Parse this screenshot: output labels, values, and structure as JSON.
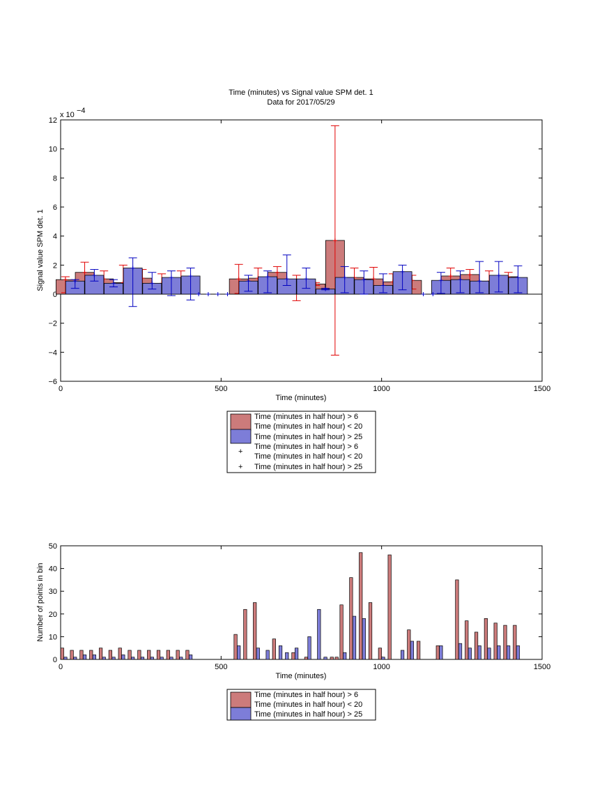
{
  "chart_data": [
    {
      "type": "bar",
      "title": "Time (minutes) vs Signal value SPM det. 1",
      "subtitle": "Data for 2017/05/29",
      "xlabel": "Time (minutes)",
      "ylabel": "Signal value SPM det. 1",
      "y_exponent": "x 10",
      "y_exponent_power": "−4",
      "xlim": [
        0,
        1500
      ],
      "ylim": [
        -6,
        12
      ],
      "x_ticks": [
        "0",
        "500",
        "1000",
        "1500"
      ],
      "y_ticks": [
        "−6",
        "−4",
        "−2",
        "0",
        "2",
        "4",
        "6",
        "8",
        "10",
        "12"
      ],
      "grid": false,
      "legend_position": "below",
      "legend": [
        {
          "label": "Time (minutes in half hour) > 6",
          "label2": "Time (minutes in half hour) < 20",
          "kind": "bar",
          "color": "#cc7b7b"
        },
        {
          "label": "Time (minutes in half hour) > 25",
          "kind": "bar",
          "color": "#7d7dd8"
        },
        {
          "label": "Time (minutes in half hour) > 6",
          "label2": "Time (minutes in half hour) < 20",
          "kind": "marker",
          "color": "#e00000"
        },
        {
          "label": "Time (minutes in half hour) > 25",
          "kind": "marker",
          "color": "#0000c0"
        }
      ],
      "series": [
        {
          "color": "#cc7b7b",
          "error_color": "#e00000",
          "x": [
            15,
            75,
            135,
            195,
            255,
            315,
            375,
            435,
            495,
            555,
            615,
            675,
            735,
            795,
            855,
            915,
            975,
            1035,
            1095,
            1155,
            1215,
            1275,
            1335,
            1395
          ],
          "values": [
            1.0,
            1.5,
            1.05,
            0.8,
            1.1,
            0.75,
            1.05,
            0,
            0,
            1.05,
            1.1,
            1.5,
            0.9,
            0.7,
            3.7,
            1.15,
            1.05,
            0.85,
            0.95,
            0,
            1.25,
            1.35,
            0.9,
            1.2
          ],
          "error_low": [
            0.1,
            0.7,
            0.3,
            0.3,
            0.5,
            0.15,
            0.3,
            0,
            0,
            0.05,
            0.4,
            0.9,
            -0.45,
            0.6,
            -4.2,
            0.1,
            0.25,
            0.0,
            0.35,
            0,
            0.7,
            0.1,
            0.0,
            0.5
          ],
          "error_high": [
            1.2,
            2.2,
            1.6,
            2.0,
            1.7,
            1.4,
            1.6,
            0,
            0,
            2.05,
            1.8,
            1.9,
            1.3,
            0.8,
            11.6,
            1.8,
            1.85,
            1.4,
            1.3,
            0,
            1.8,
            1.7,
            1.6,
            1.5
          ]
        },
        {
          "color": "#7d7dd8",
          "error_color": "#0000c0",
          "x": [
            45,
            105,
            165,
            225,
            285,
            345,
            405,
            465,
            525,
            585,
            645,
            705,
            765,
            825,
            885,
            945,
            1005,
            1065,
            1125,
            1185,
            1245,
            1305,
            1365,
            1425
          ],
          "values": [
            0.9,
            1.3,
            0.75,
            1.8,
            0.75,
            1.15,
            1.25,
            0,
            0,
            0.9,
            1.2,
            1.05,
            1.05,
            0.35,
            1.15,
            1.0,
            0.6,
            1.55,
            0,
            0.95,
            1.0,
            0.9,
            1.3,
            1.15
          ],
          "error_low": [
            0.4,
            0.9,
            0.5,
            -0.85,
            0.35,
            -0.1,
            -0.4,
            0,
            0,
            0.2,
            0.1,
            0.6,
            0.4,
            0.3,
            0.1,
            0.0,
            0.1,
            0.3,
            0,
            0.05,
            0.1,
            0.1,
            0.15,
            0.1
          ],
          "error_high": [
            1.0,
            1.7,
            1.0,
            2.5,
            1.5,
            1.6,
            1.8,
            0,
            0,
            1.3,
            1.6,
            2.7,
            1.8,
            0.4,
            1.9,
            1.6,
            1.4,
            2.0,
            0,
            1.5,
            1.6,
            2.25,
            2.25,
            1.95
          ]
        }
      ],
      "zero_markers_x": [
        430,
        460,
        490,
        520,
        1130,
        1160
      ]
    },
    {
      "type": "bar",
      "xlabel": "Time (minutes)",
      "ylabel": "Number of points in bin",
      "xlim": [
        0,
        1500
      ],
      "ylim": [
        0,
        50
      ],
      "x_ticks": [
        "0",
        "500",
        "1000",
        "1500"
      ],
      "y_ticks": [
        "0",
        "10",
        "20",
        "30",
        "40",
        "50"
      ],
      "grid": false,
      "legend_position": "below",
      "legend": [
        {
          "label": "Time (minutes in half hour) > 6",
          "label2": "Time (minutes in half hour) < 20",
          "color": "#cc7b7b"
        },
        {
          "label": "Time (minutes in half hour) > 25",
          "color": "#7d7dd8"
        }
      ],
      "series": [
        {
          "color": "#cc7b7b",
          "bars": [
            [
              5,
              5
            ],
            [
              35,
              4
            ],
            [
              65,
              4
            ],
            [
              95,
              4
            ],
            [
              125,
              5
            ],
            [
              155,
              4
            ],
            [
              185,
              5
            ],
            [
              215,
              4
            ],
            [
              245,
              4
            ],
            [
              275,
              4
            ],
            [
              305,
              4
            ],
            [
              335,
              4
            ],
            [
              365,
              4
            ],
            [
              395,
              4
            ],
            [
              545,
              11
            ],
            [
              575,
              22
            ],
            [
              605,
              25
            ],
            [
              665,
              9
            ],
            [
              725,
              3
            ],
            [
              765,
              1
            ],
            [
              845,
              1
            ],
            [
              860,
              1
            ],
            [
              875,
              24
            ],
            [
              905,
              36
            ],
            [
              935,
              47
            ],
            [
              965,
              25
            ],
            [
              995,
              5
            ],
            [
              1025,
              46
            ],
            [
              1085,
              13
            ],
            [
              1115,
              8
            ],
            [
              1175,
              6
            ],
            [
              1235,
              35
            ],
            [
              1265,
              17
            ],
            [
              1295,
              12
            ],
            [
              1325,
              18
            ],
            [
              1355,
              16
            ],
            [
              1385,
              15
            ],
            [
              1415,
              15
            ]
          ]
        },
        {
          "color": "#7d7dd8",
          "bars": [
            [
              15,
              1
            ],
            [
              45,
              1
            ],
            [
              75,
              2
            ],
            [
              105,
              2
            ],
            [
              135,
              1
            ],
            [
              165,
              1
            ],
            [
              195,
              2
            ],
            [
              225,
              1
            ],
            [
              255,
              1
            ],
            [
              285,
              1
            ],
            [
              315,
              1
            ],
            [
              345,
              1
            ],
            [
              375,
              1
            ],
            [
              405,
              2
            ],
            [
              555,
              6
            ],
            [
              615,
              5
            ],
            [
              645,
              4
            ],
            [
              685,
              6
            ],
            [
              705,
              3
            ],
            [
              735,
              5
            ],
            [
              775,
              10
            ],
            [
              805,
              22
            ],
            [
              825,
              1
            ],
            [
              885,
              3
            ],
            [
              915,
              19
            ],
            [
              945,
              18
            ],
            [
              1005,
              1
            ],
            [
              1065,
              4
            ],
            [
              1095,
              8
            ],
            [
              1185,
              6
            ],
            [
              1245,
              7
            ],
            [
              1275,
              5
            ],
            [
              1305,
              6
            ],
            [
              1335,
              5
            ],
            [
              1365,
              6
            ],
            [
              1395,
              6
            ],
            [
              1425,
              6
            ]
          ]
        }
      ]
    }
  ]
}
